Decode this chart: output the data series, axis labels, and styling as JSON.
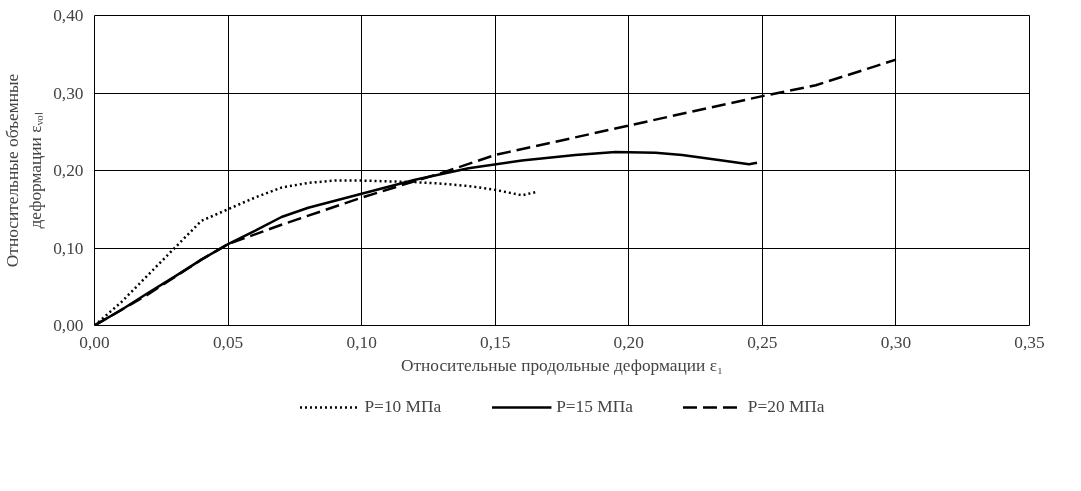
{
  "chart_data": {
    "type": "line",
    "xlabel": "Относительные продольные деформации ε₁",
    "ylabel": "Относительные объемные деформации εᵥₒₗ",
    "xlim": [
      0,
      0.35
    ],
    "ylim": [
      0,
      0.4
    ],
    "xticks": [
      {
        "value": 0,
        "label": "0,00"
      },
      {
        "value": 0.05,
        "label": "0,05"
      },
      {
        "value": 0.1,
        "label": "0,10"
      },
      {
        "value": 0.15,
        "label": "0,15"
      },
      {
        "value": 0.2,
        "label": "0,20"
      },
      {
        "value": 0.25,
        "label": "0,25"
      },
      {
        "value": 0.3,
        "label": "0,30"
      },
      {
        "value": 0.35,
        "label": "0,35"
      }
    ],
    "yticks": [
      {
        "value": 0,
        "label": "0,00"
      },
      {
        "value": 0.1,
        "label": "0,10"
      },
      {
        "value": 0.2,
        "label": "0,20"
      },
      {
        "value": 0.3,
        "label": "0,30"
      },
      {
        "value": 0.4,
        "label": "0,40"
      }
    ],
    "grid": true,
    "legend": "bottom",
    "marker": "none",
    "series": [
      {
        "name": "P=10 МПа",
        "color": "#000000",
        "line_style": "dotted",
        "x": [
          0,
          0.01,
          0.02,
          0.03,
          0.04,
          0.05,
          0.06,
          0.07,
          0.08,
          0.09,
          0.1,
          0.11,
          0.12,
          0.13,
          0.14,
          0.15,
          0.16,
          0.165
        ],
        "values": [
          0,
          0.03,
          0.065,
          0.1,
          0.135,
          0.15,
          0.165,
          0.178,
          0.184,
          0.187,
          0.187,
          0.186,
          0.185,
          0.183,
          0.18,
          0.175,
          0.168,
          0.172
        ]
      },
      {
        "name": "P=15 МПа",
        "color": "#000000",
        "line_style": "solid",
        "x": [
          0,
          0.01,
          0.02,
          0.03,
          0.04,
          0.05,
          0.06,
          0.07,
          0.08,
          0.1,
          0.12,
          0.14,
          0.16,
          0.18,
          0.195,
          0.21,
          0.22,
          0.235,
          0.245,
          0.248
        ],
        "values": [
          0,
          0.02,
          0.042,
          0.063,
          0.085,
          0.105,
          0.122,
          0.14,
          0.152,
          0.17,
          0.188,
          0.203,
          0.213,
          0.22,
          0.224,
          0.223,
          0.22,
          0.213,
          0.208,
          0.21
        ]
      },
      {
        "name": "P=20 МПа",
        "color": "#000000",
        "line_style": "dashed",
        "x": [
          0,
          0.02,
          0.04,
          0.05,
          0.07,
          0.1,
          0.13,
          0.15,
          0.2,
          0.25,
          0.27,
          0.3
        ],
        "values": [
          0,
          0.04,
          0.085,
          0.105,
          0.13,
          0.165,
          0.197,
          0.22,
          0.258,
          0.296,
          0.31,
          0.343
        ]
      }
    ]
  }
}
